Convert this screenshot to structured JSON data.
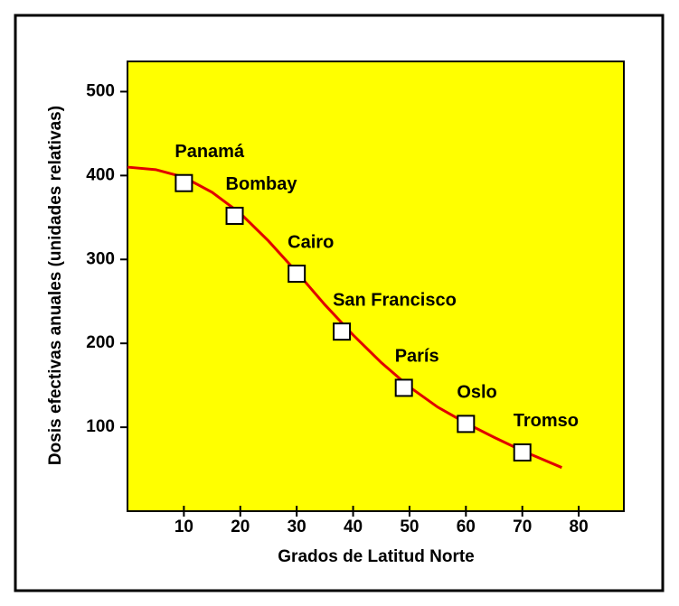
{
  "chart_data": {
    "type": "scatter",
    "x_label": "Grados de Latitud Norte",
    "y_label": "Dosis efectivas anuales (unidades relativas)",
    "x": [
      10,
      19,
      30,
      38,
      49,
      60,
      70
    ],
    "values": [
      391,
      352,
      283,
      214,
      147,
      104,
      70
    ],
    "point_labels": [
      "Panamá",
      "Bombay",
      "Cairo",
      "San Francisco",
      "París",
      "Oslo",
      "Tromso"
    ],
    "curve": {
      "x": [
        0,
        5,
        10,
        15,
        20,
        25,
        30,
        35,
        40,
        45,
        50,
        55,
        60,
        65,
        70,
        77
      ],
      "y": [
        410,
        407,
        398,
        380,
        355,
        322,
        285,
        246,
        210,
        177,
        148,
        124,
        105,
        88,
        72,
        52
      ],
      "color": "#e00000"
    },
    "background": "#ffff00",
    "xlim": [
      0,
      88
    ],
    "ylim": [
      0,
      536
    ],
    "xticks": [
      10,
      20,
      30,
      40,
      50,
      60,
      70,
      80
    ],
    "yticks": [
      100,
      200,
      300,
      400,
      500
    ]
  }
}
